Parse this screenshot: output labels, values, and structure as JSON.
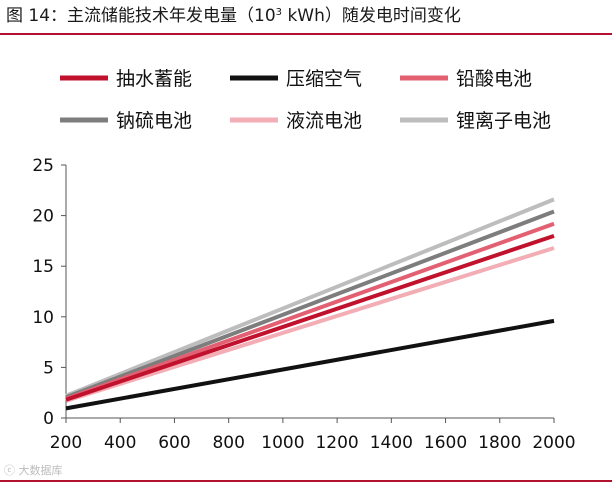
{
  "figure": {
    "title_prefix": "图 14：主流储能技术年发电量（10",
    "title_sup": "3",
    "title_suffix": " kWh）随发电时间变化",
    "accent_color": "#b3122e"
  },
  "watermark": {
    "text": "ⓒ 大数据库"
  },
  "chart_data": {
    "type": "line",
    "title": "主流储能技术年发电量（10^3 kWh）随发电时间变化",
    "xlabel": "",
    "ylabel": "",
    "xlim": [
      200,
      2000
    ],
    "ylim": [
      0,
      25
    ],
    "xticks": [
      200,
      400,
      600,
      800,
      1000,
      1200,
      1400,
      1600,
      1800,
      2000
    ],
    "yticks": [
      0,
      5,
      10,
      15,
      20,
      25
    ],
    "grid": false,
    "legend_position": "top",
    "x": [
      200,
      2000
    ],
    "series": [
      {
        "name": "抽水蓄能",
        "values": [
          1.8,
          18.0
        ],
        "color": "#c0122d"
      },
      {
        "name": "压缩空气",
        "values": [
          0.95,
          9.6
        ],
        "color": "#111111"
      },
      {
        "name": "铅酸电池",
        "values": [
          1.9,
          19.2
        ],
        "color": "#e35f72"
      },
      {
        "name": "钠硫电池",
        "values": [
          2.05,
          20.4
        ],
        "color": "#7d7d7d"
      },
      {
        "name": "液流电池",
        "values": [
          1.7,
          16.8
        ],
        "color": "#f2adb5"
      },
      {
        "name": "锂离子电池",
        "values": [
          2.2,
          21.6
        ],
        "color": "#bdbdbd"
      }
    ]
  }
}
